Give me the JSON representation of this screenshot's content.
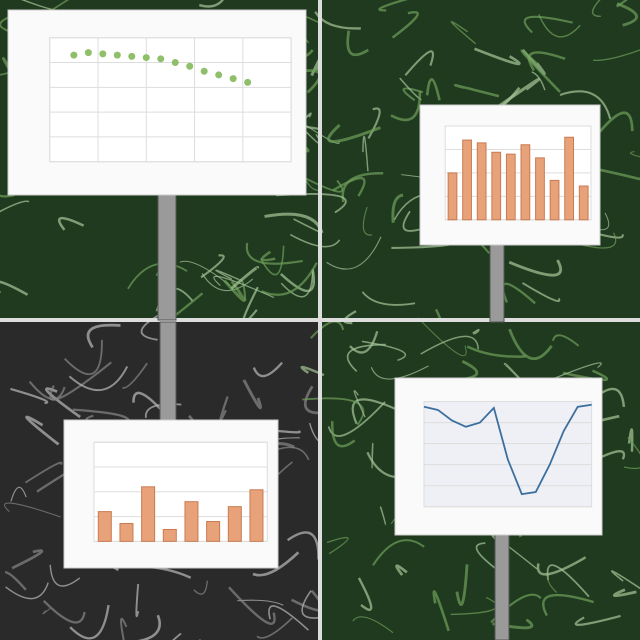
{
  "panels": [
    {
      "theme": "green",
      "chart": {
        "type": "scatter",
        "color": "#8fbf6a",
        "x": [
          1,
          1.6,
          2.2,
          2.8,
          3.4,
          4,
          4.6,
          5.2,
          5.8,
          6.4,
          7,
          7.6,
          8.2
        ],
        "values": [
          0.86,
          0.88,
          0.87,
          0.86,
          0.85,
          0.84,
          0.83,
          0.8,
          0.77,
          0.73,
          0.7,
          0.67,
          0.64
        ],
        "xlim": [
          0,
          10
        ],
        "ylim": [
          0,
          1
        ],
        "yticks": [
          0,
          0.2,
          0.4,
          0.6,
          0.8,
          1
        ],
        "xticks": [
          0,
          2,
          4,
          6,
          8,
          10
        ]
      }
    },
    {
      "theme": "green",
      "chart": {
        "type": "bar",
        "color": "#e8a27a",
        "values": [
          0.5,
          0.85,
          0.82,
          0.72,
          0.7,
          0.8,
          0.66,
          0.42,
          0.88,
          0.36
        ],
        "ylim": [
          0,
          1
        ],
        "yticks": [
          0,
          0.25,
          0.5,
          0.75,
          1
        ]
      }
    },
    {
      "theme": "gray",
      "chart": {
        "type": "bar",
        "color": "#e8a27a",
        "values": [
          0.3,
          0.18,
          0.55,
          0.12,
          0.4,
          0.2,
          0.35,
          0.52
        ],
        "ylim": [
          0,
          1
        ],
        "yticks": [
          0,
          0.25,
          0.5,
          0.75,
          1
        ]
      }
    },
    {
      "theme": "green",
      "chart": {
        "type": "line",
        "color": "#3d6f9e",
        "x": [
          0,
          1,
          2,
          3,
          4,
          5,
          6,
          7,
          8,
          9,
          10,
          11,
          12
        ],
        "values": [
          0.95,
          0.92,
          0.82,
          0.76,
          0.8,
          0.94,
          0.45,
          0.12,
          0.14,
          0.4,
          0.72,
          0.95,
          0.97
        ],
        "xlim": [
          0,
          12
        ],
        "ylim": [
          0,
          1
        ],
        "yticks": [
          0,
          0.2,
          0.4,
          0.6,
          0.8,
          1
        ]
      }
    }
  ]
}
